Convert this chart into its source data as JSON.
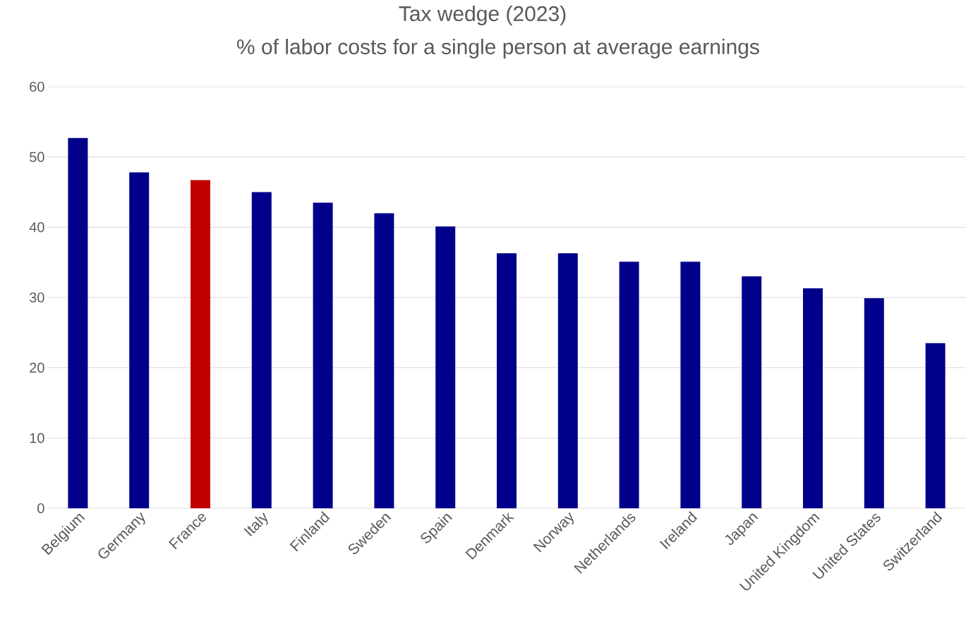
{
  "chart_data": {
    "type": "bar",
    "title": "Tax wedge (2023)",
    "subtitle": "% of labor costs for a single person at average earnings",
    "categories": [
      "Belgium",
      "Germany",
      "France",
      "Italy",
      "Finland",
      "Sweden",
      "Spain",
      "Denmark",
      "Norway",
      "Netherlands",
      "Ireland",
      "Japan",
      "United Kingdom",
      "United States",
      "Switzerland"
    ],
    "values": [
      52.7,
      47.8,
      46.7,
      45.0,
      43.5,
      42.0,
      40.1,
      36.3,
      36.3,
      35.1,
      35.1,
      33.0,
      31.3,
      29.9,
      23.5
    ],
    "colors": [
      "#00008b",
      "#00008b",
      "#c00000",
      "#00008b",
      "#00008b",
      "#00008b",
      "#00008b",
      "#00008b",
      "#00008b",
      "#00008b",
      "#00008b",
      "#00008b",
      "#00008b",
      "#00008b",
      "#00008b"
    ],
    "ylim": [
      0,
      60
    ],
    "yticks": [
      0,
      10,
      20,
      30,
      40,
      50,
      60
    ],
    "grid": "y"
  }
}
